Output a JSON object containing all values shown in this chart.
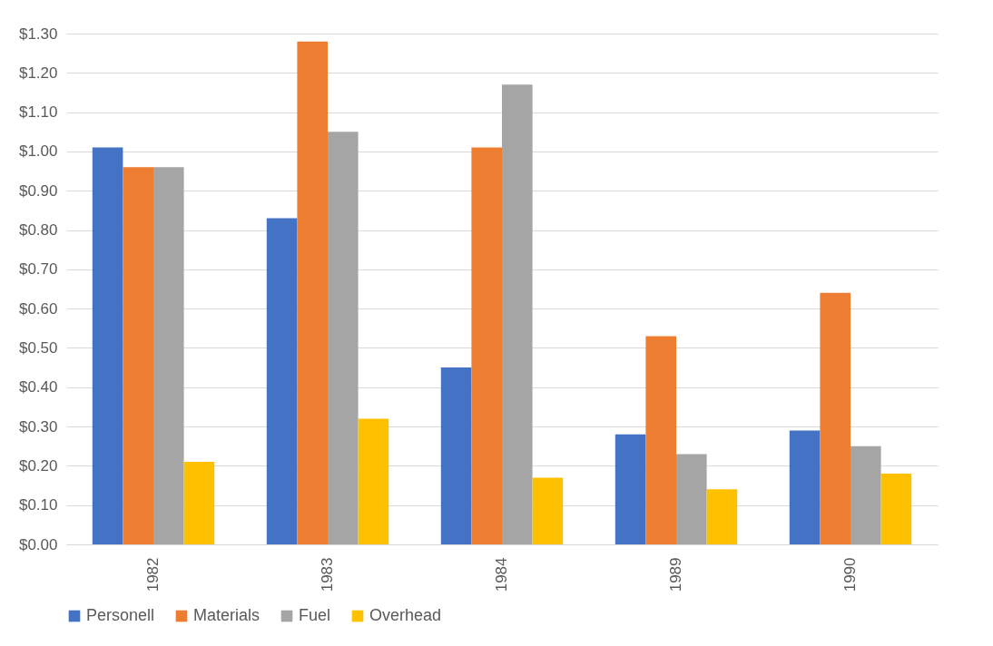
{
  "chart_data": {
    "type": "bar",
    "categories": [
      "1982",
      "1983",
      "1984",
      "1989",
      "1990"
    ],
    "series": [
      {
        "name": "Personell",
        "color": "#4472c4",
        "values": [
          1.01,
          0.83,
          0.45,
          0.28,
          0.29
        ]
      },
      {
        "name": "Materials",
        "color": "#ed7d31",
        "values": [
          0.96,
          1.28,
          1.01,
          0.53,
          0.64
        ]
      },
      {
        "name": "Fuel",
        "color": "#a5a5a5",
        "values": [
          0.96,
          1.05,
          1.17,
          0.23,
          0.25
        ]
      },
      {
        "name": "Overhead",
        "color": "#ffc000",
        "values": [
          0.21,
          0.32,
          0.17,
          0.14,
          0.18
        ]
      }
    ],
    "ylim": [
      0,
      1.3
    ],
    "yticks": [
      {
        "value": 0,
        "label": "$0.00"
      },
      {
        "value": 0.1,
        "label": "$0.10"
      },
      {
        "value": 0.2,
        "label": "$0.20"
      },
      {
        "value": 0.3,
        "label": "$0.30"
      },
      {
        "value": 0.4,
        "label": "$0.40"
      },
      {
        "value": 0.5,
        "label": "$0.50"
      },
      {
        "value": 0.6,
        "label": "$0.60"
      },
      {
        "value": 0.7,
        "label": "$0.70"
      },
      {
        "value": 0.8,
        "label": "$0.80"
      },
      {
        "value": 0.9,
        "label": "$0.90"
      },
      {
        "value": 1.0,
        "label": "$1.00"
      },
      {
        "value": 1.1,
        "label": "$1.10"
      },
      {
        "value": 1.2,
        "label": "$1.20"
      },
      {
        "value": 1.3,
        "label": "$1.30"
      }
    ],
    "grid": "y",
    "legend": "bottom"
  }
}
